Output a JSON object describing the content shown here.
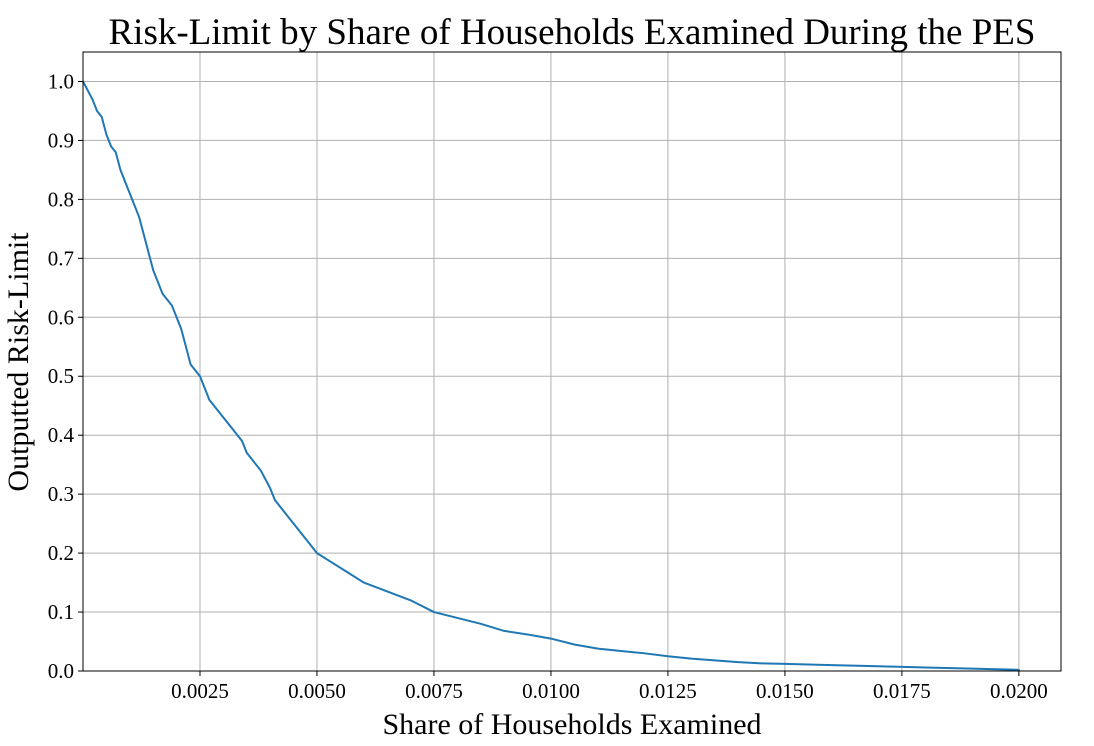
{
  "chart_data": {
    "type": "line",
    "title": "Risk-Limit by Share of Households Examined During the PES",
    "xlabel": "Share of Households Examined",
    "ylabel": "Outputted Risk-Limit",
    "xlim": [
      0.0,
      0.0209
    ],
    "ylim": [
      0.0,
      1.05
    ],
    "xticks": [
      0.0025,
      0.005,
      0.0075,
      0.01,
      0.0125,
      0.015,
      0.0175,
      0.02
    ],
    "xtick_labels": [
      "0.0025",
      "0.0050",
      "0.0075",
      "0.0100",
      "0.0125",
      "0.0150",
      "0.0175",
      "0.0200"
    ],
    "yticks": [
      0.0,
      0.1,
      0.2,
      0.3,
      0.4,
      0.5,
      0.6,
      0.7,
      0.8,
      0.9,
      1.0
    ],
    "ytick_labels": [
      "0.0",
      "0.1",
      "0.2",
      "0.3",
      "0.4",
      "0.5",
      "0.6",
      "0.7",
      "0.8",
      "0.9",
      "1.0"
    ],
    "grid": true,
    "legend": false,
    "series": [
      {
        "color": "#1f77b4",
        "x": [
          0.0,
          0.0002,
          0.0003,
          0.0004,
          0.0005,
          0.0006,
          0.0007,
          0.0008,
          0.0009,
          0.001,
          0.0011,
          0.0012,
          0.0013,
          0.0014,
          0.0015,
          0.0016,
          0.0017,
          0.0018,
          0.0019,
          0.002,
          0.0021,
          0.0022,
          0.0023,
          0.0024,
          0.0025,
          0.0026,
          0.0027,
          0.0028,
          0.003,
          0.0032,
          0.0034,
          0.0035,
          0.0036,
          0.0038,
          0.004,
          0.0041,
          0.0042,
          0.0044,
          0.0046,
          0.0048,
          0.005,
          0.0053,
          0.0056,
          0.006,
          0.0065,
          0.007,
          0.0075,
          0.008,
          0.0085,
          0.009,
          0.0095,
          0.01,
          0.0105,
          0.011,
          0.0115,
          0.012,
          0.0125,
          0.013,
          0.0135,
          0.014,
          0.0145,
          0.015,
          0.016,
          0.017,
          0.018,
          0.019,
          0.02
        ],
        "y": [
          1.0,
          0.97,
          0.95,
          0.94,
          0.91,
          0.89,
          0.88,
          0.85,
          0.83,
          0.81,
          0.79,
          0.77,
          0.74,
          0.71,
          0.68,
          0.66,
          0.64,
          0.63,
          0.62,
          0.6,
          0.58,
          0.55,
          0.52,
          0.51,
          0.5,
          0.48,
          0.46,
          0.45,
          0.43,
          0.41,
          0.39,
          0.37,
          0.36,
          0.34,
          0.31,
          0.29,
          0.28,
          0.26,
          0.24,
          0.22,
          0.2,
          0.185,
          0.17,
          0.15,
          0.135,
          0.12,
          0.1,
          0.09,
          0.08,
          0.068,
          0.062,
          0.055,
          0.045,
          0.038,
          0.034,
          0.03,
          0.025,
          0.021,
          0.018,
          0.015,
          0.013,
          0.012,
          0.01,
          0.008,
          0.006,
          0.004,
          0.002
        ]
      }
    ]
  }
}
